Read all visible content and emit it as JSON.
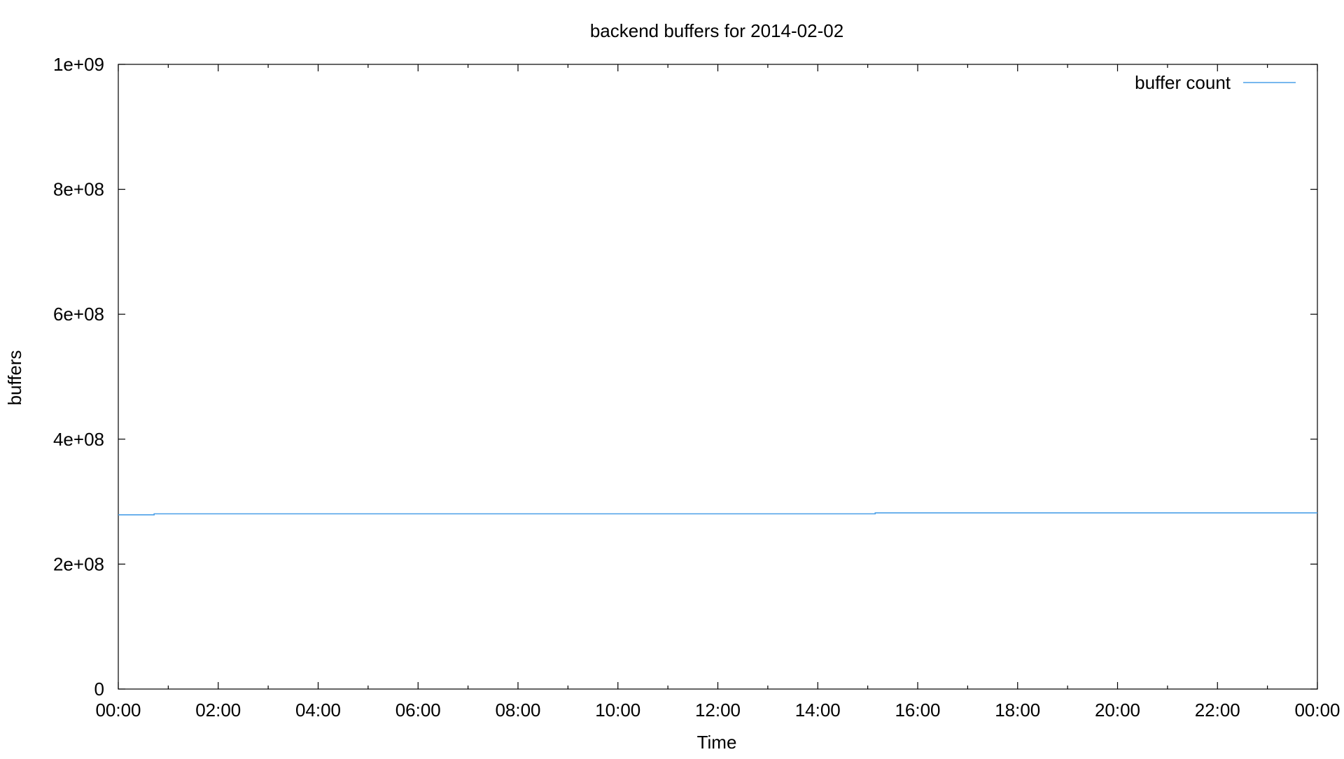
{
  "chart_data": {
    "type": "line",
    "title": "backend buffers for 2014-02-02",
    "xlabel": "Time",
    "ylabel": "buffers",
    "xlim": [
      "00:00",
      "24:00"
    ],
    "ylim": [
      0,
      1000000000
    ],
    "yticks": [
      {
        "value": 0,
        "label": "0"
      },
      {
        "value": 200000000,
        "label": "2e+08"
      },
      {
        "value": 400000000,
        "label": "4e+08"
      },
      {
        "value": 600000000,
        "label": "6e+08"
      },
      {
        "value": 800000000,
        "label": "8e+08"
      },
      {
        "value": 1000000000,
        "label": "1e+09"
      }
    ],
    "xticks": [
      "00:00",
      "02:00",
      "04:00",
      "06:00",
      "08:00",
      "10:00",
      "12:00",
      "14:00",
      "16:00",
      "18:00",
      "20:00",
      "22:00",
      "00:00"
    ],
    "grid": false,
    "legend": {
      "position": "top-right"
    },
    "series": [
      {
        "name": "buffer count",
        "color": "#4a9fe8",
        "points": [
          {
            "x": "00:00",
            "y": 279000000
          },
          {
            "x": "00:43",
            "y": 279000000
          },
          {
            "x": "00:43",
            "y": 280500000
          },
          {
            "x": "15:09",
            "y": 280500000
          },
          {
            "x": "15:09",
            "y": 282000000
          },
          {
            "x": "24:00",
            "y": 282000000
          }
        ]
      }
    ]
  }
}
